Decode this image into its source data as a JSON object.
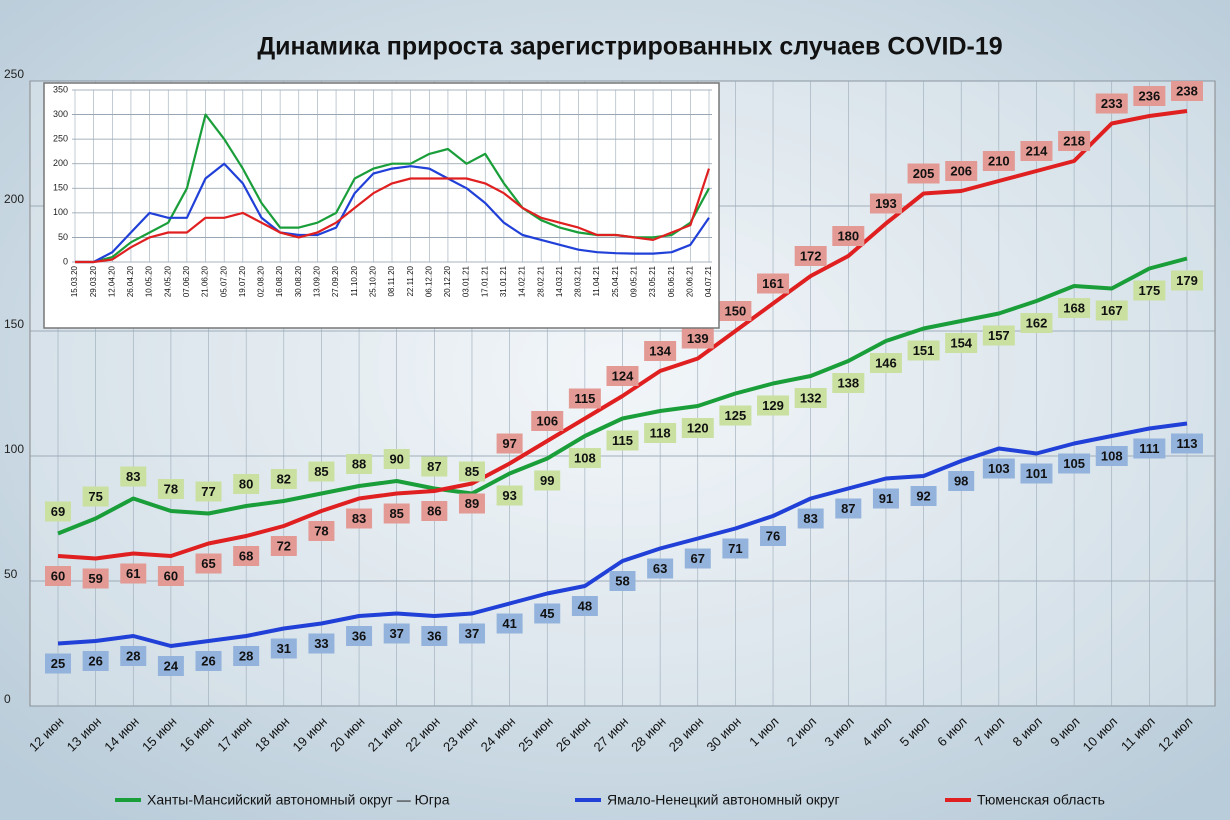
{
  "chart_data": [
    {
      "type": "line",
      "title": "Динамика прироста зарегистрированных случаев COVID-19",
      "categories": [
        "12 июн",
        "13 июн",
        "14 июн",
        "15 июн",
        "16 июн",
        "17 июн",
        "18 июн",
        "19 июн",
        "20 июн",
        "21 июн",
        "22 июн",
        "23 июн",
        "24 июн",
        "25 июн",
        "26 июн",
        "27 июн",
        "28 июн",
        "29 июн",
        "30 июн",
        "1 июл",
        "2 июл",
        "3 июл",
        "4 июл",
        "5 июл",
        "6 июл",
        "7 июл",
        "8 июл",
        "9 июл",
        "10 июл",
        "11 июл",
        "12 июл"
      ],
      "series": [
        {
          "name": "Ханты-Мансийский автономный округ — Югра",
          "color": "#1a9e3a",
          "label_color": "#c9e0a0",
          "values": [
            69,
            75,
            83,
            78,
            77,
            80,
            82,
            85,
            88,
            90,
            87,
            85,
            93,
            99,
            108,
            115,
            118,
            120,
            125,
            129,
            132,
            138,
            146,
            151,
            154,
            157,
            162,
            168,
            167,
            175,
            179
          ]
        },
        {
          "name": "Ямало-Ненецкий автономный округ",
          "color": "#2040d8",
          "label_color": "#93b3dc",
          "values": [
            25,
            26,
            28,
            24,
            26,
            28,
            31,
            33,
            36,
            37,
            36,
            37,
            41,
            45,
            48,
            58,
            63,
            67,
            71,
            76,
            83,
            87,
            91,
            92,
            98,
            103,
            101,
            105,
            108,
            111,
            113
          ]
        },
        {
          "name": "Тюменская область",
          "color": "#e02020",
          "label_color": "#e39a94",
          "values": [
            60,
            59,
            61,
            60,
            65,
            68,
            72,
            78,
            83,
            85,
            86,
            89,
            97,
            106,
            115,
            124,
            134,
            139,
            150,
            161,
            172,
            180,
            193,
            205,
            206,
            210,
            214,
            218,
            233,
            236,
            238
          ]
        }
      ],
      "ylim": [
        0,
        250
      ],
      "yticks": [
        0,
        50,
        100,
        150,
        200,
        250
      ],
      "grid": true,
      "legend": "bottom"
    },
    {
      "type": "line",
      "categories": [
        "15.03.20",
        "29.03.20",
        "12.04.20",
        "26.04.20",
        "10.05.20",
        "24.05.20",
        "07.06.20",
        "21.06.20",
        "05.07.20",
        "19.07.20",
        "02.08.20",
        "16.08.20",
        "30.08.20",
        "13.09.20",
        "27.09.20",
        "11.10.20",
        "25.10.20",
        "08.11.20",
        "22.11.20",
        "06.12.20",
        "20.12.20",
        "03.01.21",
        "17.01.21",
        "31.01.21",
        "14.02.21",
        "28.02.21",
        "14.03.21",
        "28.03.21",
        "11.04.21",
        "25.04.21",
        "09.05.21",
        "23.05.21",
        "06.06.21",
        "20.06.21",
        "04.07.21"
      ],
      "series": [
        {
          "color": "#1a9e3a",
          "values": [
            0,
            0,
            10,
            40,
            60,
            80,
            150,
            300,
            250,
            190,
            120,
            70,
            70,
            80,
            100,
            170,
            190,
            200,
            200,
            220,
            230,
            200,
            220,
            160,
            110,
            85,
            70,
            60,
            55,
            55,
            50,
            50,
            55,
            80,
            150
          ]
        },
        {
          "color": "#2040d8",
          "values": [
            0,
            0,
            20,
            60,
            100,
            90,
            90,
            170,
            200,
            160,
            90,
            60,
            55,
            55,
            70,
            140,
            180,
            190,
            195,
            190,
            170,
            150,
            120,
            80,
            55,
            45,
            35,
            25,
            20,
            18,
            17,
            17,
            20,
            35,
            90
          ]
        },
        {
          "color": "#e02020",
          "values": [
            0,
            0,
            5,
            30,
            50,
            60,
            60,
            90,
            90,
            100,
            80,
            60,
            50,
            60,
            80,
            110,
            140,
            160,
            170,
            170,
            170,
            170,
            160,
            140,
            110,
            90,
            80,
            70,
            55,
            55,
            50,
            45,
            60,
            75,
            190
          ]
        }
      ],
      "ylim": [
        0,
        350
      ],
      "yticks": [
        0,
        50,
        100,
        150,
        200,
        250,
        300,
        350
      ],
      "grid": true
    }
  ]
}
